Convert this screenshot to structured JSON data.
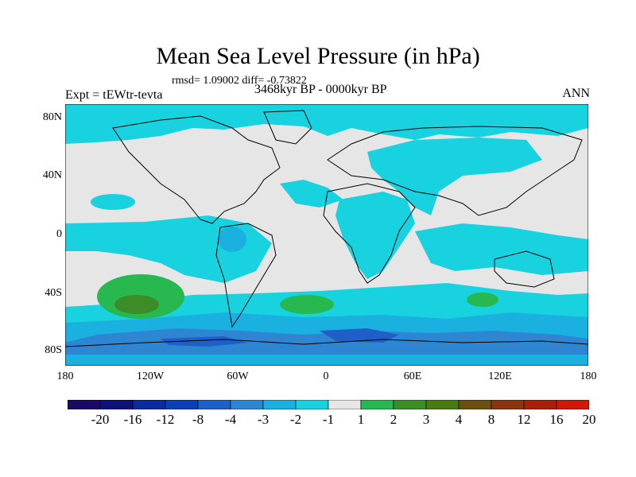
{
  "title": "Mean Sea Level Pressure (in hPa)",
  "stats": "rmsd= 1.09002 diff= -0.73822",
  "experiment": "Expt = tEWtr-tevta",
  "period": "3468kyr BP - 0000kyr BP",
  "season": "ANN",
  "lat_labels": [
    "80N",
    "40N",
    "0",
    "40S",
    "80S"
  ],
  "lon_labels": [
    "180",
    "120W",
    "60W",
    "0",
    "60E",
    "120E",
    "180"
  ],
  "colorbar": {
    "colors": [
      "#1a0a66",
      "#10107a",
      "#0a2aa0",
      "#0a3fb8",
      "#1e5fc8",
      "#2e86d2",
      "#1ab0e0",
      "#18d2e0",
      "#e6e6e6",
      "#28b850",
      "#3c8c28",
      "#4a7a14",
      "#6a5010",
      "#8a3410",
      "#a82008",
      "#d01808"
    ],
    "labels": [
      "-20",
      "-16",
      "-12",
      "-8",
      "-4",
      "-3",
      "-2",
      "-1",
      "1",
      "2",
      "3",
      "4",
      "8",
      "12",
      "16",
      "20"
    ]
  },
  "map_regions": {
    "background": "#e6e6e6",
    "cyan": "#18d2e0",
    "light_blue": "#1ab0e0",
    "mid_blue": "#2e86d2",
    "dark_blue": "#1e5fc8",
    "green": "#28b850",
    "dark_green": "#3c8c28"
  }
}
